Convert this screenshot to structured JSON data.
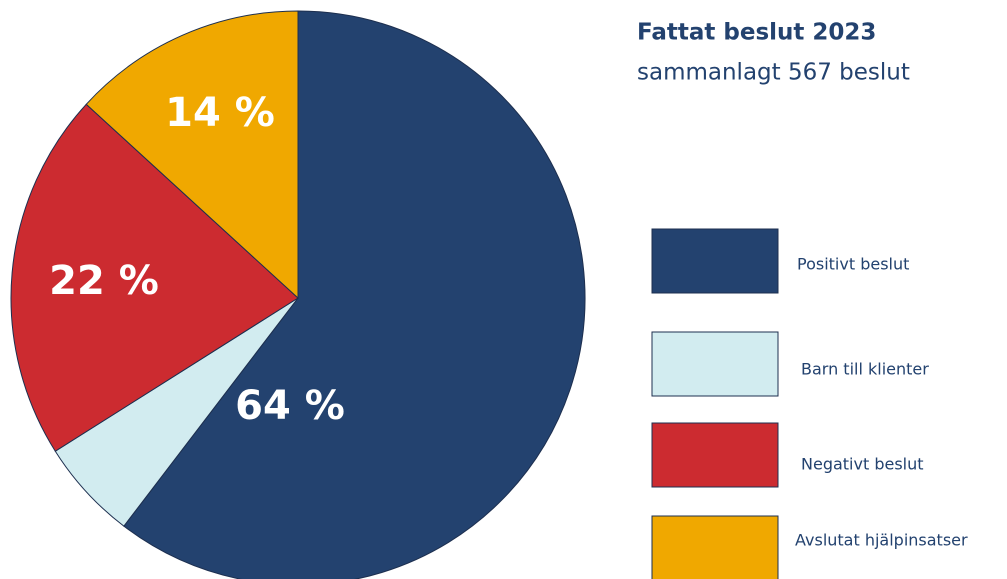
{
  "chart_data": {
    "type": "pie",
    "title": "Fattat beslut 2023",
    "subtitle": "sammanlagt 567 beslut",
    "categories": [
      "Positivt beslut",
      "Barn till klienter",
      "Negativt beslut",
      "Avslutat hjälpinsatser"
    ],
    "values": [
      64,
      6,
      22,
      14
    ],
    "value_labels": [
      "64 %",
      null,
      "22 %",
      "14 %"
    ],
    "colors": [
      "#23426f",
      "#d2ecf0",
      "#cc2b30",
      "#f0a800"
    ],
    "legend": "right"
  }
}
